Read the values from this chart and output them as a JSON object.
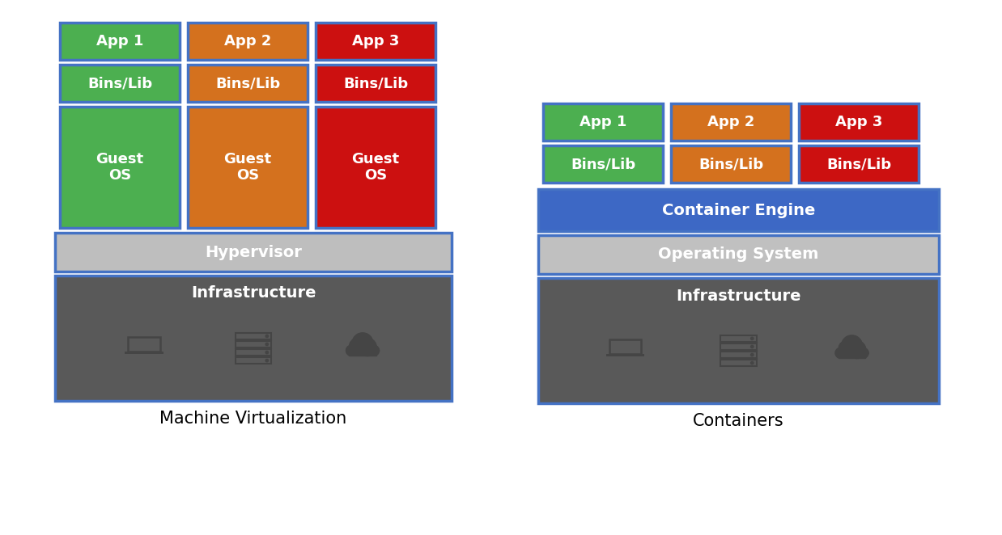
{
  "left_label": "Machine Virtualization",
  "right_label": "Containers",
  "colors": {
    "green": "#4CAF50",
    "orange": "#D4711E",
    "red": "#CC1010",
    "hypervisor": "#BEBEBE",
    "infra": "#595959",
    "container_engine": "#3D68C5",
    "os": "#C0C0C0",
    "border": "#4472C4",
    "white": "#FFFFFF",
    "dark_icon": "#454545",
    "background": "#FFFFFF"
  },
  "virt_cols": [
    {
      "color": "#4CAF50",
      "label_app": "App 1",
      "label_bins": "Bins/Lib",
      "label_os": "Guest\nOS"
    },
    {
      "color": "#D4711E",
      "label_app": "App 2",
      "label_bins": "Bins/Lib",
      "label_os": "Guest\nOS"
    },
    {
      "color": "#CC1010",
      "label_app": "App 3",
      "label_bins": "Bins/Lib",
      "label_os": "Guest\nOS"
    }
  ],
  "cont_cols": [
    {
      "color": "#4CAF50",
      "label_app": "App 1",
      "label_bins": "Bins/Lib"
    },
    {
      "color": "#D4711E",
      "label_app": "App 2",
      "label_bins": "Bins/Lib"
    },
    {
      "color": "#CC1010",
      "label_app": "App 3",
      "label_bins": "Bins/Lib"
    }
  ]
}
